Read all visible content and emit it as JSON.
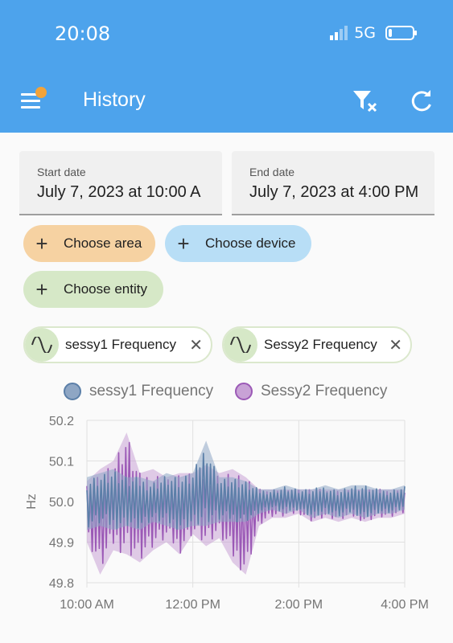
{
  "status_bar": {
    "time": "20:08",
    "network": "5G",
    "battery_level": 0.15
  },
  "app_bar": {
    "title": "History",
    "menu_icon": "hamburger-menu-icon",
    "filter_icon": "filter-remove-icon",
    "refresh_icon": "refresh-icon",
    "badge_color": "#f2a33a"
  },
  "dates": {
    "start_label": "Start date",
    "start_value": "July 7, 2023 at 10:00 A",
    "end_label": "End date",
    "end_value": "July 7, 2023 at 4:00 PM"
  },
  "targets": {
    "area_label": "Choose area",
    "device_label": "Choose device",
    "entity_label": "Choose entity",
    "area_color": "#f6d2a2",
    "device_color": "#b8def6",
    "entity_color": "#d6e8c7"
  },
  "selected_entities": [
    {
      "label": "sessy1 Frequency",
      "icon": "sine-wave-icon"
    },
    {
      "label": "Sessy2 Frequency",
      "icon": "sine-wave-icon"
    }
  ],
  "chart_data": {
    "type": "line",
    "ylabel": "Hz",
    "ylim": [
      49.8,
      50.2
    ],
    "yticks": [
      "50.2",
      "50.1",
      "50.0",
      "49.9",
      "49.8"
    ],
    "xlim": [
      "10:00",
      "16:00"
    ],
    "xticks": [
      "10:00 AM",
      "12:00 PM",
      "2:00 PM",
      "4:00 PM"
    ],
    "grid": true,
    "legend_position": "top",
    "series": [
      {
        "name": "sessy1 Frequency",
        "color": "#5b7fa8",
        "fill": "#8ea6c4",
        "x": [
          "10:00",
          "10:15",
          "10:30",
          "10:45",
          "11:00",
          "11:15",
          "11:30",
          "11:45",
          "12:00",
          "12:15",
          "12:30",
          "12:45",
          "13:00",
          "13:15",
          "13:30",
          "13:45",
          "14:00",
          "14:15",
          "14:30",
          "14:45",
          "15:00",
          "15:15",
          "15:30",
          "15:45",
          "16:00"
        ],
        "min": [
          49.93,
          49.94,
          49.93,
          49.94,
          49.93,
          49.95,
          49.94,
          49.93,
          49.94,
          49.94,
          49.95,
          49.95,
          49.95,
          49.97,
          49.98,
          49.97,
          49.98,
          49.96,
          49.97,
          49.96,
          49.97,
          49.96,
          49.97,
          49.97,
          49.98
        ],
        "max": [
          50.06,
          50.07,
          50.08,
          50.06,
          50.06,
          50.05,
          50.07,
          50.06,
          50.07,
          50.15,
          50.06,
          50.06,
          50.05,
          50.03,
          50.03,
          50.04,
          50.03,
          50.03,
          50.04,
          50.03,
          50.04,
          50.04,
          50.03,
          50.03,
          50.04
        ]
      },
      {
        "name": "Sessy2 Frequency",
        "color": "#9b59b6",
        "fill": "#c8a2d6",
        "x": [
          "10:00",
          "10:15",
          "10:30",
          "10:45",
          "11:00",
          "11:15",
          "11:30",
          "11:45",
          "12:00",
          "12:15",
          "12:30",
          "12:45",
          "13:00",
          "13:15",
          "13:30",
          "13:45",
          "14:00",
          "14:15",
          "14:30",
          "14:45",
          "15:00",
          "15:15",
          "15:30",
          "15:45",
          "16:00"
        ],
        "min": [
          49.9,
          49.82,
          49.88,
          49.87,
          49.85,
          49.88,
          49.9,
          49.87,
          49.92,
          49.89,
          49.91,
          49.85,
          49.82,
          49.94,
          49.96,
          49.96,
          49.97,
          49.95,
          49.96,
          49.95,
          49.96,
          49.95,
          49.96,
          49.96,
          49.97
        ],
        "max": [
          50.05,
          50.08,
          50.1,
          50.17,
          50.07,
          50.08,
          50.06,
          50.07,
          50.07,
          50.09,
          50.07,
          50.08,
          50.06,
          50.03,
          50.03,
          50.03,
          50.03,
          50.03,
          50.03,
          50.03,
          50.03,
          50.03,
          50.03,
          50.03,
          50.03
        ]
      }
    ]
  }
}
